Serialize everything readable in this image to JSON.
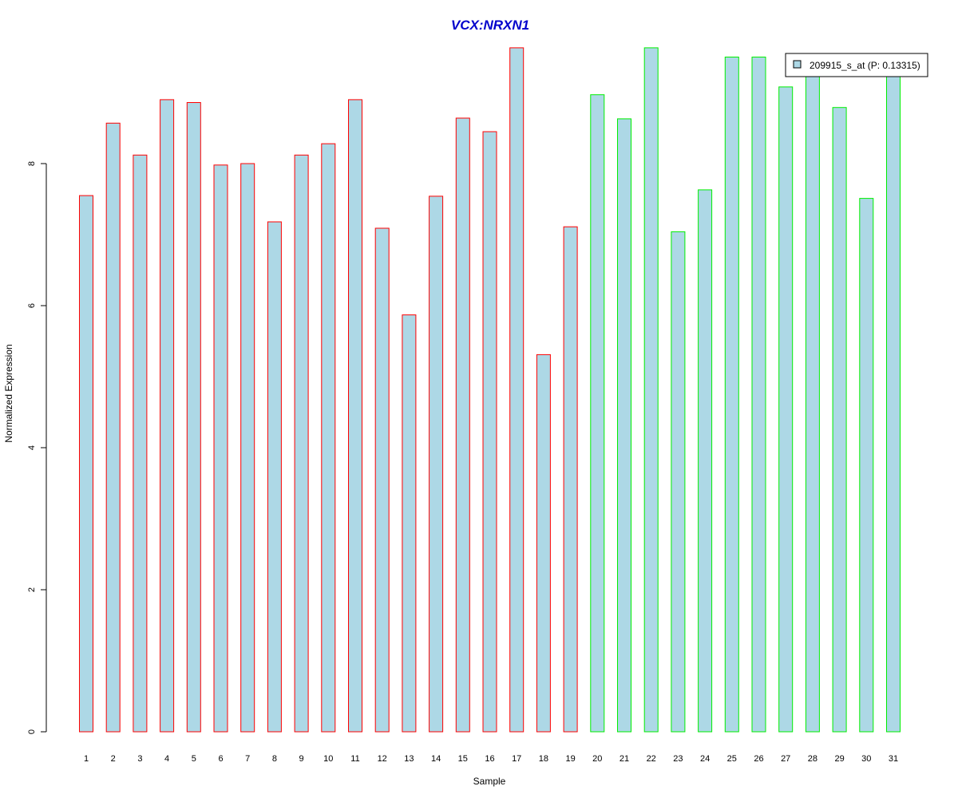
{
  "chart_data": {
    "type": "bar",
    "title": "VCX:NRXN1",
    "xlabel": "Sample",
    "ylabel": "Normalized Expression",
    "ylim": [
      0,
      9.8
    ],
    "yticks": [
      0,
      2,
      4,
      6,
      8
    ],
    "grid": false,
    "legend_position": "top-right",
    "legend_label": "209915_s_at (P: 0.13315)",
    "categories": [
      "1",
      "2",
      "3",
      "4",
      "5",
      "6",
      "7",
      "8",
      "9",
      "10",
      "11",
      "12",
      "13",
      "14",
      "15",
      "16",
      "17",
      "18",
      "19",
      "20",
      "21",
      "22",
      "23",
      "24",
      "25",
      "26",
      "27",
      "28",
      "29",
      "30",
      "31"
    ],
    "values": [
      7.55,
      8.57,
      8.12,
      8.9,
      8.86,
      7.98,
      8.0,
      7.18,
      8.12,
      8.28,
      8.9,
      7.09,
      5.87,
      7.54,
      8.64,
      8.45,
      9.63,
      5.31,
      7.11,
      8.97,
      8.63,
      9.63,
      7.04,
      7.63,
      9.5,
      9.5,
      9.08,
      9.29,
      8.79,
      7.51,
      9.28
    ],
    "groups": [
      "red",
      "red",
      "red",
      "red",
      "red",
      "red",
      "red",
      "red",
      "red",
      "red",
      "red",
      "red",
      "red",
      "red",
      "red",
      "red",
      "red",
      "red",
      "red",
      "green",
      "green",
      "green",
      "green",
      "green",
      "green",
      "green",
      "green",
      "green",
      "green",
      "green",
      "green"
    ]
  },
  "colors": {
    "bar_fill": "#add8e6",
    "red": "#ff0000",
    "green": "#00ee00",
    "title": "#0000cc",
    "axis": "#000000"
  }
}
